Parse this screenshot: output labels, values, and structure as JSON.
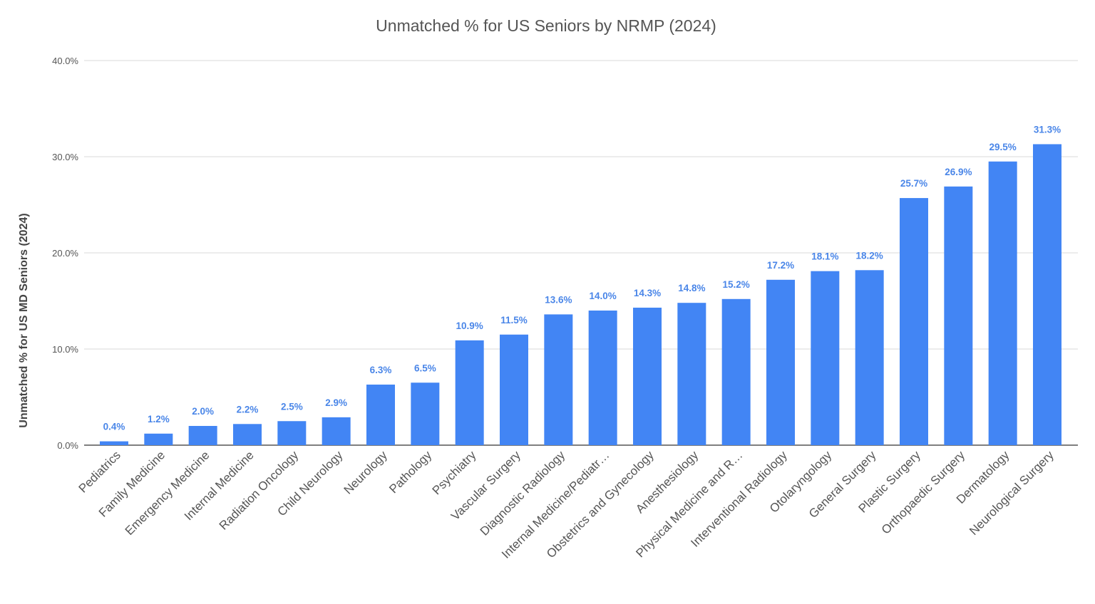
{
  "chart_data": {
    "type": "bar",
    "title": "Unmatched % for US Seniors by NRMP (2024)",
    "xlabel": "",
    "ylabel": "Unmatched % for US MD Seniors (2024)",
    "ylim": [
      0,
      40
    ],
    "yticks": [
      "0.0%",
      "10.0%",
      "20.0%",
      "30.0%",
      "40.0%"
    ],
    "grid": true,
    "legend": "none",
    "bar_color": "#4285f4",
    "label_color": "#4a86e8",
    "categories": [
      "Pediatrics",
      "Family Medicine",
      "Emergency Medicine",
      "Internal Medicine",
      "Radiation Oncology",
      "Child Neurology",
      "Neurology",
      "Pathology",
      "Psychiatry",
      "Vascular Surgery",
      "Diagnostic Radiology",
      "Internal Medicine/Pediatr…",
      "Obstetrics and Gynecology",
      "Anesthesiology",
      "Physical Medicine and R…",
      "Interventional Radiology",
      "Otolaryngology",
      "General Surgery",
      "Plastic Surgery",
      "Orthopaedic Surgery",
      "Dermatology",
      "Neurological Surgery"
    ],
    "values": [
      0.4,
      1.2,
      2.0,
      2.2,
      2.5,
      2.9,
      6.3,
      6.5,
      10.9,
      11.5,
      13.6,
      14.0,
      14.3,
      14.8,
      15.2,
      17.2,
      18.1,
      18.2,
      25.7,
      26.9,
      29.5,
      31.3
    ],
    "data_labels": [
      "0.4%",
      "1.2%",
      "2.0%",
      "2.2%",
      "2.5%",
      "2.9%",
      "6.3%",
      "6.5%",
      "10.9%",
      "11.5%",
      "13.6%",
      "14.0%",
      "14.3%",
      "14.8%",
      "15.2%",
      "17.2%",
      "18.1%",
      "18.2%",
      "25.7%",
      "26.9%",
      "29.5%",
      "31.3%"
    ]
  }
}
